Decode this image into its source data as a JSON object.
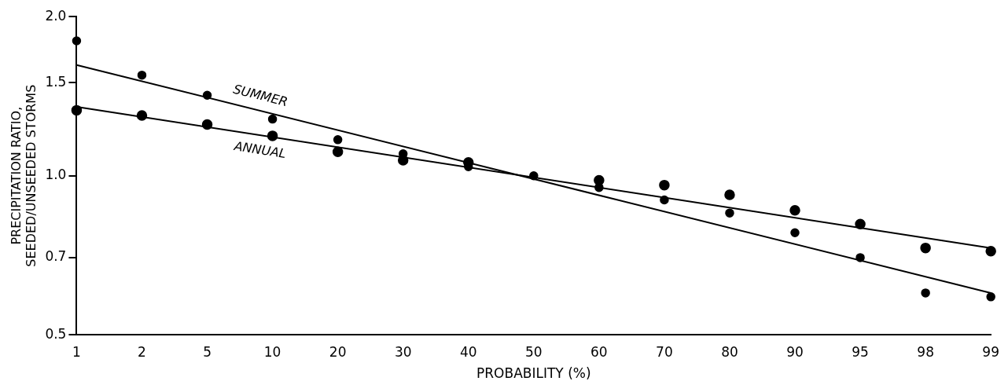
{
  "chart_data": {
    "type": "scatter",
    "xlabel": "PROBABILITY (%)",
    "ylabel": "PRECIPITATION RATIO,\nSEEDED/UNSEEDED STORMS",
    "categories": [
      "1",
      "2",
      "5",
      "10",
      "20",
      "30",
      "40",
      "50",
      "60",
      "70",
      "80",
      "90",
      "95",
      "98",
      "99"
    ],
    "series": [
      {
        "type": "line",
        "name": "SUMMER",
        "color": "#000000",
        "marker": "none",
        "values": [
          1.62,
          null,
          null,
          null,
          null,
          null,
          null,
          null,
          null,
          null,
          null,
          null,
          null,
          null,
          0.6
        ]
      },
      {
        "type": "line",
        "name": "ANNUAL",
        "color": "#000000",
        "marker": "none",
        "values": [
          1.35,
          null,
          null,
          null,
          null,
          null,
          null,
          null,
          null,
          null,
          null,
          null,
          null,
          null,
          0.73
        ]
      },
      {
        "color": "#000000",
        "marker": "circle",
        "values": [
          1.8,
          1.55,
          1.42,
          1.28,
          1.17,
          1.1,
          1.04,
          1.0,
          0.95,
          0.9,
          0.85,
          0.78,
          0.7,
          0.6,
          0.59
        ]
      },
      {
        "color": "#000000",
        "marker": "circle",
        "values": [
          1.33,
          1.3,
          1.25,
          1.19,
          1.11,
          1.07,
          1.06,
          null,
          0.98,
          0.96,
          0.92,
          0.86,
          0.81,
          0.73,
          0.72
        ]
      }
    ],
    "log": "y",
    "ylim": [
      0.5,
      2.0
    ],
    "yticks": [
      0.5,
      0.7,
      {
        "value": 1,
        "label": "1.0"
      },
      1.5,
      {
        "value": 2,
        "label": "2.0"
      }
    ],
    "grid": false,
    "legend": false
  }
}
